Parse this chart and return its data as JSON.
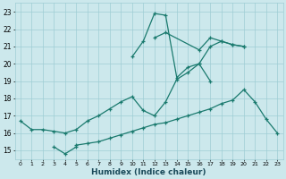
{
  "xlabel": "Humidex (Indice chaleur)",
  "xlim": [
    -0.5,
    23.5
  ],
  "ylim": [
    14.5,
    23.5
  ],
  "yticks": [
    15,
    16,
    17,
    18,
    19,
    20,
    21,
    22,
    23
  ],
  "xticks": [
    0,
    1,
    2,
    3,
    4,
    5,
    6,
    7,
    8,
    9,
    10,
    11,
    12,
    13,
    14,
    15,
    16,
    17,
    18,
    19,
    20,
    21,
    22,
    23
  ],
  "bg_color": "#cce8ec",
  "grid_color": "#9fcdd4",
  "line_color": "#1a7a6e",
  "lines": [
    {
      "x": [
        5,
        6,
        7,
        8,
        9,
        10,
        11,
        12,
        13,
        14,
        15,
        16,
        17,
        18,
        19,
        20,
        21,
        22,
        23
      ],
      "y": [
        15.3,
        15.4,
        15.5,
        15.7,
        15.9,
        16.1,
        16.3,
        16.5,
        16.6,
        16.8,
        17.0,
        17.2,
        17.4,
        17.7,
        17.9,
        18.5,
        17.8,
        16.8,
        16.0
      ]
    },
    {
      "x": [
        0,
        1,
        2,
        3,
        4,
        5,
        6,
        7,
        8,
        9,
        10,
        11,
        12,
        13,
        14,
        15,
        16,
        17,
        18,
        19,
        20
      ],
      "y": [
        16.7,
        16.2,
        16.2,
        16.1,
        16.0,
        16.2,
        16.7,
        17.0,
        17.4,
        17.8,
        18.1,
        17.3,
        17.0,
        17.8,
        19.1,
        19.5,
        20.0,
        21.0,
        21.3,
        21.1,
        21.0
      ]
    },
    {
      "x": [
        3,
        4,
        5
      ],
      "y": [
        15.2,
        14.8,
        15.2
      ]
    },
    {
      "x": [
        10,
        11,
        12,
        13,
        14,
        15,
        16,
        17
      ],
      "y": [
        20.4,
        21.3,
        22.9,
        22.8,
        19.2,
        19.8,
        20.0,
        19.0
      ]
    },
    {
      "x": [
        12,
        13,
        16,
        17,
        18,
        19,
        20
      ],
      "y": [
        21.5,
        21.8,
        20.8,
        21.5,
        21.3,
        21.1,
        21.0
      ]
    }
  ]
}
